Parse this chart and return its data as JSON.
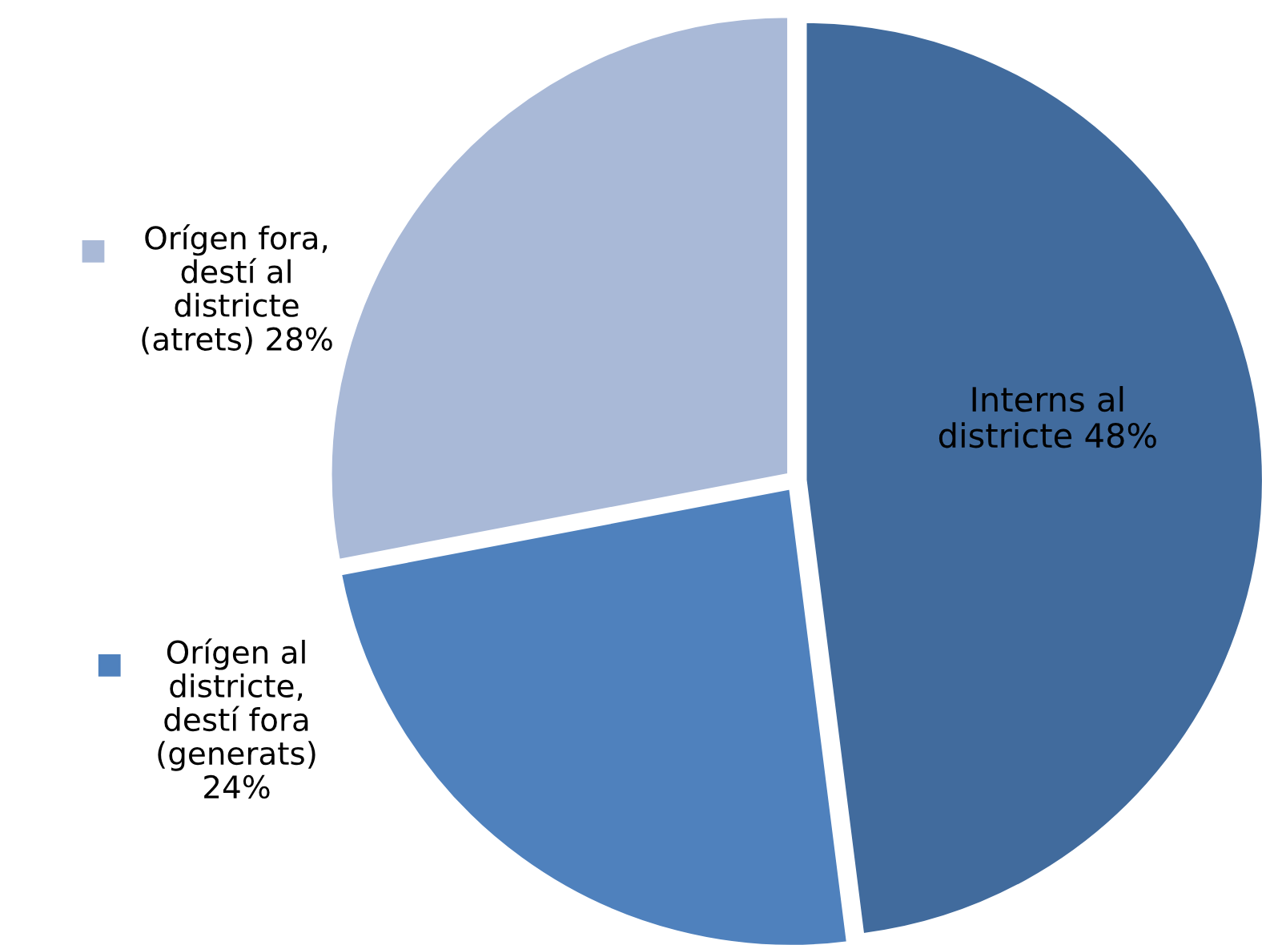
{
  "chart_data": {
    "type": "pie",
    "categories": [
      "Interns al\ndistricte",
      "Orígen al\ndistricte,\ndestí fora\n(generats)\n",
      "Orígen fora,\ndestí al\ndistricte\n(atrets)"
    ],
    "values": [
      48,
      24,
      28
    ],
    "colors": [
      "#416b9d",
      "#4f81bd",
      "#a9b9d7"
    ],
    "value_labels": [
      "48%",
      "24%",
      "28%"
    ],
    "legend": "left"
  }
}
